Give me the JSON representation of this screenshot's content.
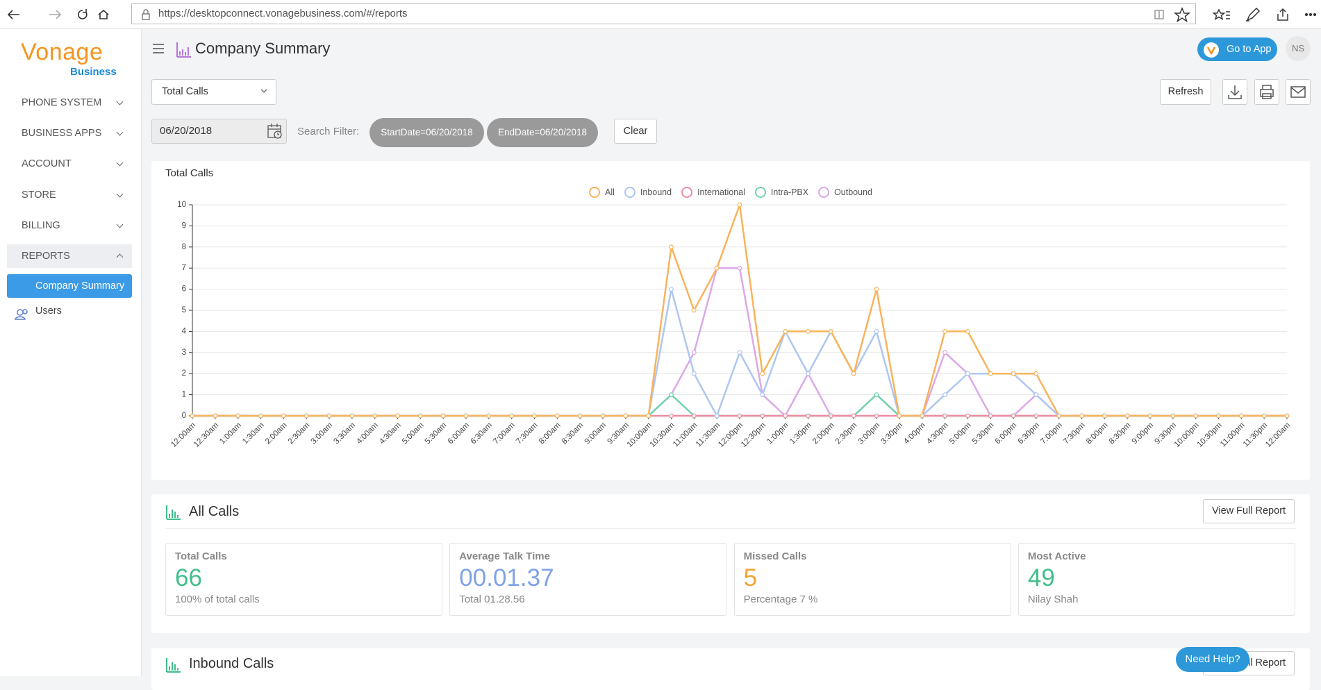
{
  "browser": {
    "url": "https://desktopconnect.vonagebusiness.com/#/reports"
  },
  "sidebar": {
    "logo": "Vonage",
    "logo_sub": "Business",
    "menu": [
      "PHONE SYSTEM",
      "BUSINESS APPS",
      "ACCOUNT",
      "STORE",
      "BILLING",
      "REPORTS"
    ],
    "submenu": [
      "Company Summary",
      "Users"
    ]
  },
  "header": {
    "title": "Company Summary",
    "go_to_app": "Go to App",
    "avatar": "NS"
  },
  "toolbar": {
    "report_select": "Total Calls",
    "refresh": "Refresh",
    "date": "06/20/2018",
    "search_label": "Search Filter:",
    "filters": [
      "StartDate=06/20/2018",
      "EndDate=06/20/2018"
    ],
    "clear": "Clear"
  },
  "chart_data": {
    "type": "line",
    "title": "Total Calls",
    "legend": "top",
    "grid": true,
    "categories": [
      "12:00am",
      "12:30am",
      "1:00am",
      "1:30am",
      "2:00am",
      "2:30am",
      "3:00am",
      "3:30am",
      "4:00am",
      "4:30am",
      "5:00am",
      "5:30am",
      "6:00am",
      "6:30am",
      "7:00am",
      "7:30am",
      "8:00am",
      "8:30am",
      "9:00am",
      "9:30am",
      "10:00am",
      "10:30am",
      "11:00am",
      "11:30am",
      "12:00pm",
      "12:30pm",
      "1:00pm",
      "1:30pm",
      "2:00pm",
      "2:30pm",
      "3:00pm",
      "3:30pm",
      "4:00pm",
      "4:30pm",
      "5:00pm",
      "5:30pm",
      "6:00pm",
      "6:30pm",
      "7:00pm",
      "7:30pm",
      "8:00pm",
      "8:30pm",
      "9:00pm",
      "9:30pm",
      "10:00pm",
      "10:30pm",
      "11:00pm",
      "11:30pm",
      "12:00am"
    ],
    "ylim": [
      0,
      10
    ],
    "yticks": [
      0,
      1,
      2,
      3,
      4,
      5,
      6,
      7,
      8,
      9,
      10
    ],
    "series": [
      {
        "name": "All",
        "color": "#f9b35a",
        "values": [
          0,
          0,
          0,
          0,
          0,
          0,
          0,
          0,
          0,
          0,
          0,
          0,
          0,
          0,
          0,
          0,
          0,
          0,
          0,
          0,
          0,
          8,
          5,
          7,
          10,
          2,
          4,
          4,
          4,
          2,
          6,
          0,
          0,
          4,
          4,
          2,
          2,
          2,
          0,
          0,
          0,
          0,
          0,
          0,
          0,
          0,
          0,
          0,
          0
        ]
      },
      {
        "name": "Inbound",
        "color": "#aec6f2",
        "values": [
          0,
          0,
          0,
          0,
          0,
          0,
          0,
          0,
          0,
          0,
          0,
          0,
          0,
          0,
          0,
          0,
          0,
          0,
          0,
          0,
          0,
          6,
          2,
          0,
          3,
          1,
          4,
          2,
          4,
          2,
          4,
          0,
          0,
          1,
          2,
          2,
          2,
          1,
          0,
          0,
          0,
          0,
          0,
          0,
          0,
          0,
          0,
          0,
          0
        ]
      },
      {
        "name": "International",
        "color": "#f08aa2",
        "values": [
          0,
          0,
          0,
          0,
          0,
          0,
          0,
          0,
          0,
          0,
          0,
          0,
          0,
          0,
          0,
          0,
          0,
          0,
          0,
          0,
          0,
          0,
          0,
          0,
          0,
          0,
          0,
          0,
          0,
          0,
          0,
          0,
          0,
          0,
          0,
          0,
          0,
          0,
          0,
          0,
          0,
          0,
          0,
          0,
          0,
          0,
          0,
          0,
          0
        ]
      },
      {
        "name": "Intra-PBX",
        "color": "#72d4aa",
        "values": [
          0,
          0,
          0,
          0,
          0,
          0,
          0,
          0,
          0,
          0,
          0,
          0,
          0,
          0,
          0,
          0,
          0,
          0,
          0,
          0,
          0,
          1,
          0,
          0,
          0,
          0,
          0,
          0,
          0,
          0,
          1,
          0,
          0,
          0,
          0,
          0,
          0,
          0,
          0,
          0,
          0,
          0,
          0,
          0,
          0,
          0,
          0,
          0,
          0
        ]
      },
      {
        "name": "Outbound",
        "color": "#dba8e8",
        "values": [
          0,
          0,
          0,
          0,
          0,
          0,
          0,
          0,
          0,
          0,
          0,
          0,
          0,
          0,
          0,
          0,
          0,
          0,
          0,
          0,
          0,
          1,
          3,
          7,
          7,
          1,
          0,
          2,
          0,
          0,
          1,
          0,
          0,
          3,
          2,
          0,
          0,
          1,
          0,
          0,
          0,
          0,
          0,
          0,
          0,
          0,
          0,
          0,
          0
        ]
      }
    ]
  },
  "all_calls": {
    "title": "All Calls",
    "button": "View Full Report",
    "stats": [
      {
        "label": "Total Calls",
        "value": "66",
        "sub": "100% of total calls",
        "color": "#3fbf8a"
      },
      {
        "label": "Average Talk Time",
        "value": "00.01.37",
        "sub": "Total 01.28.56",
        "color": "#7fa2e8"
      },
      {
        "label": "Missed Calls",
        "value": "5",
        "sub": "Percentage 7 %",
        "color": "#f5a236"
      },
      {
        "label": "Most Active",
        "value": "49",
        "sub": "Nilay Shah",
        "color": "#3fbf8a"
      }
    ]
  },
  "inbound_calls": {
    "title": "Inbound Calls",
    "button": "View Full Report"
  },
  "help": "Need Help?"
}
